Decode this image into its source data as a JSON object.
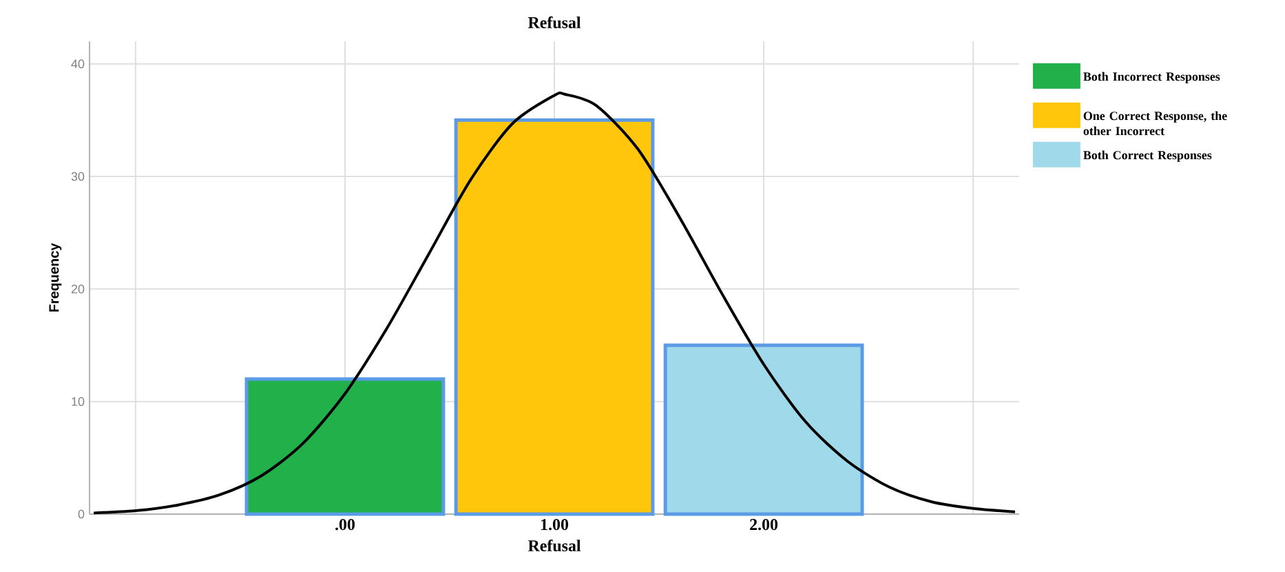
{
  "chart_data": {
    "type": "bar",
    "title": "Refusal",
    "xlabel": "Refusal",
    "ylabel": "Frequency",
    "series": [
      {
        "name": "Both Incorrect Responses",
        "color": "#22b04b",
        "x": [
          0
        ],
        "values": [
          12
        ]
      },
      {
        "name": "One Correct Response, the other Incorrect",
        "color": "#ffc60b",
        "x": [
          1
        ],
        "values": [
          35
        ]
      },
      {
        "name": "Both Correct Responses",
        "color": "#9fd9ea",
        "x": [
          2
        ],
        "values": [
          15
        ]
      },
      {
        "type": "line",
        "color": "#000000",
        "x": [
          -1.2,
          -1.0,
          -0.8,
          -0.6,
          -0.4,
          -0.2,
          0,
          0.2,
          0.4,
          0.6,
          0.8,
          1.0,
          1.05,
          1.2,
          1.4,
          1.6,
          1.8,
          2.0,
          2.2,
          2.4,
          2.6,
          2.8,
          3.0,
          3.2
        ],
        "values": [
          0.1,
          0.3,
          0.8,
          1.7,
          3.4,
          6.3,
          10.7,
          16.5,
          23.1,
          29.7,
          34.7,
          37.2,
          37.3,
          36.3,
          32.4,
          26.3,
          19.6,
          13.3,
          8.2,
          4.7,
          2.4,
          1.1,
          0.5,
          0.2
        ]
      }
    ],
    "xlim": [
      -1.22,
      3.22
    ],
    "ylim": [
      0,
      42
    ],
    "xticks": [
      {
        "value": -1,
        "label": null
      },
      {
        "value": 0,
        "label": ".00"
      },
      {
        "value": 1,
        "label": "1.00"
      },
      {
        "value": 2,
        "label": "2.00"
      },
      {
        "value": 3,
        "label": null
      }
    ],
    "yticks": [
      0,
      10,
      20,
      30,
      40
    ],
    "grid": true,
    "legend": "right",
    "marker": "none"
  }
}
